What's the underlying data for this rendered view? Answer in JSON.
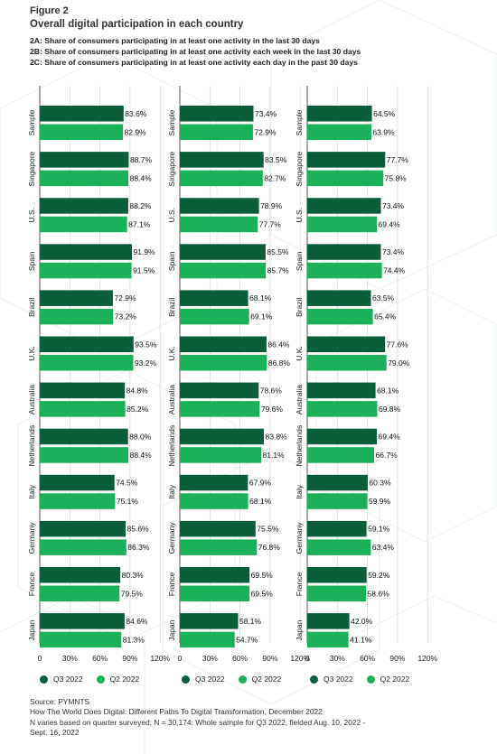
{
  "figure_label": "Figure 2",
  "title": "Overall digital participation in each country",
  "subtitles": [
    "2A: Share of consumers participating in at least one activity in the last 30 days",
    "2B: Share of consumers participating in at least one activity each week in the last 30 days",
    "2C: Share of consumers participating in at least one activity each day in the past 30 days"
  ],
  "colors": {
    "q3": "#0b5e3a",
    "q2": "#1bb15a",
    "bg_lines": "#e9f1ec"
  },
  "legend": {
    "q3": "Q3 2022",
    "q2": "Q2 2022"
  },
  "footer": {
    "source": "Source: PYMNTS",
    "citation": "How The World Does Digital: Different Paths To Digital Transformation, December 2022",
    "note_line1": "N varies based on quarter surveyed; N = 30,174: Whole sample for Q3 2022, fielded Aug. 10, 2022  -",
    "note_line2": "Sept. 16, 2022"
  },
  "chart_data": [
    {
      "id": "2A",
      "type": "bar",
      "orientation": "horizontal",
      "categories": [
        "Sample",
        "Singapore",
        "U.S.",
        "Spain",
        "Brazil",
        "U.K.",
        "Australia",
        "Netherlands",
        "Italy",
        "Germany",
        "France",
        "Japan"
      ],
      "series": [
        {
          "name": "Q3 2022",
          "values": [
            83.6,
            88.7,
            88.2,
            91.9,
            72.9,
            93.5,
            84.8,
            88.0,
            74.5,
            85.6,
            80.3,
            84.6
          ]
        },
        {
          "name": "Q2 2022",
          "values": [
            82.9,
            88.4,
            87.1,
            91.5,
            73.2,
            93.2,
            85.2,
            88.4,
            75.1,
            86.3,
            79.5,
            81.3
          ]
        }
      ],
      "x_ticks": [
        "0",
        "30%",
        "60%",
        "90%",
        "120%"
      ],
      "xlim": [
        0,
        120
      ],
      "value_suffix": "%"
    },
    {
      "id": "2B",
      "type": "bar",
      "orientation": "horizontal",
      "categories": [
        "Sample",
        "Singapore",
        "U.S.",
        "Spain",
        "Brazil",
        "U.K.",
        "Australia",
        "Netherlands",
        "Italy",
        "Germany",
        "France",
        "Japan"
      ],
      "series": [
        {
          "name": "Q3 2022",
          "values": [
            73.4,
            83.5,
            78.9,
            85.5,
            68.1,
            86.4,
            78.6,
            83.8,
            67.9,
            75.5,
            69.5,
            58.1
          ]
        },
        {
          "name": "Q2 2022",
          "values": [
            72.9,
            82.7,
            77.7,
            85.7,
            69.1,
            86.8,
            79.6,
            81.1,
            68.1,
            76.8,
            69.5,
            54.7
          ]
        }
      ],
      "x_ticks": [
        "0",
        "30%",
        "60%",
        "90%",
        "120%"
      ],
      "xlim": [
        0,
        120
      ],
      "value_suffix": "%"
    },
    {
      "id": "2C",
      "type": "bar",
      "orientation": "horizontal",
      "categories": [
        "Sample",
        "Singapore",
        "U.S.",
        "Spain",
        "Brazil",
        "U.K.",
        "Australia",
        "Netherlands",
        "Italy",
        "Germany",
        "France",
        "Japan"
      ],
      "series": [
        {
          "name": "Q3 2022",
          "values": [
            64.5,
            77.7,
            73.4,
            73.4,
            63.5,
            77.6,
            68.1,
            69.4,
            60.3,
            59.1,
            59.2,
            42.0
          ]
        },
        {
          "name": "Q2 2022",
          "values": [
            63.9,
            75.8,
            69.4,
            74.4,
            65.4,
            79.0,
            69.8,
            66.7,
            59.9,
            63.4,
            58.6,
            41.1
          ]
        }
      ],
      "x_ticks": [
        "0",
        "30%",
        "60%",
        "90%",
        "120%"
      ],
      "xlim": [
        0,
        120
      ],
      "value_suffix": "%"
    }
  ]
}
